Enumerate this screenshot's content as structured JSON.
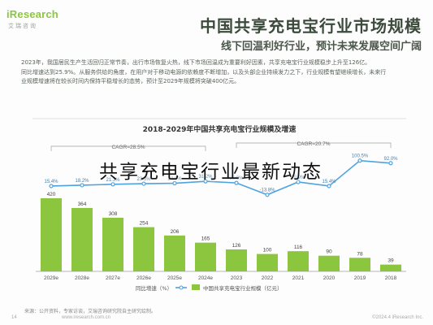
{
  "brand": {
    "logo_text": "iResearch",
    "logo_sub": "艾 瑞 咨 询"
  },
  "header": {
    "title": "中国共享充电宝行业市场规模",
    "subtitle": "线下回温利好行业，预计未来发展空间广阔"
  },
  "body_paragraphs": [
    "2023年，我国居民生产生活回归正常节奏，出行市场恢复火热，线下市场回温成为重要利好因素，共享充电宝行业规模稳步上升至126亿。",
    "同比增速达到25.9%。从服务供给的角度，在用户对于移动电源的依赖度不断增加，以及头部企业持续发力之下，行业规模有望继续增长，未来行",
    "业规模增速将在较长时间内保持平稳增长的态势，预计至2029年规模将突破400亿元。"
  ],
  "chart_data": {
    "type": "bar",
    "title": "2018-2029年中国共享充电宝行业规模及增速",
    "categories": [
      "2018",
      "2019",
      "2020",
      "2021",
      "2022",
      "2023",
      "2024e",
      "2025e",
      "2026e",
      "2027e",
      "2028e",
      "2029e"
    ],
    "series": [
      {
        "name": "中国共享充电宝行业规模（亿元）",
        "kind": "bar",
        "values": [
          39,
          78,
          90,
          116,
          100,
          126,
          165,
          206,
          254,
          308,
          364,
          420
        ]
      },
      {
        "name": "同比增速（%）",
        "kind": "line",
        "values": [
          92.0,
          100.5,
          15.4,
          28.9,
          -13.8,
          25.9,
          31.2,
          24.8,
          23.3,
          21.3,
          18.2,
          15.4
        ]
      }
    ],
    "cagr_labels": [
      "CAGR=28.5%",
      "CAGR=20.7%"
    ],
    "bar_color": "#8cc63f",
    "line_color": "#4da3e0",
    "ylim": [
      0,
      450
    ]
  },
  "overlay": {
    "title": "共享充电宝行业最新动态"
  },
  "footer": {
    "source": "来源：公开资料，专家访谈，艾瑞咨询研究院自主研究绘制。",
    "copyright": "©2024.4 iResearch Inc.",
    "url": "www.iresearch.com.cn",
    "page": "14"
  }
}
